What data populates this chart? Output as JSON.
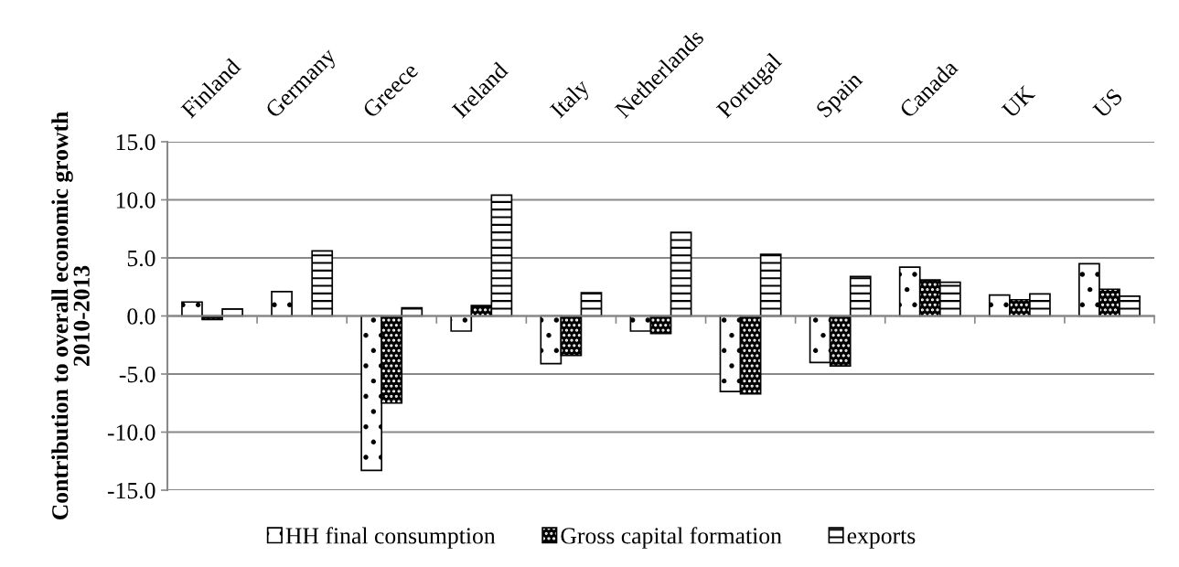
{
  "chart_data": {
    "type": "bar",
    "ylabel": "Contribution to overall economic growth\n2010-2013",
    "categories": [
      "Finland",
      "Germany",
      "Greece",
      "Ireland",
      "Italy",
      "Netherlands",
      "Portugal",
      "Spain",
      "Canada",
      "UK",
      "US"
    ],
    "series": [
      {
        "name": "HH final consumption",
        "color": "#000000",
        "values": [
          1.2,
          2.1,
          -13.3,
          -1.3,
          -4.1,
          -1.3,
          -6.5,
          -4.0,
          4.2,
          1.8,
          4.5
        ]
      },
      {
        "name": "Gross capital formation",
        "color": "#000000",
        "values": [
          -0.3,
          null,
          -7.5,
          0.9,
          -3.4,
          -1.5,
          -6.7,
          -4.3,
          3.1,
          1.4,
          2.3
        ]
      },
      {
        "name": "exports",
        "color": "#000000",
        "values": [
          0.6,
          5.6,
          0.7,
          10.4,
          2.0,
          7.2,
          5.3,
          3.4,
          2.9,
          1.9,
          1.7
        ]
      }
    ],
    "ylim": [
      -15,
      15
    ],
    "yticks": [
      {
        "value": -15,
        "label": "-15.0"
      },
      {
        "value": -10,
        "label": "-10.0"
      },
      {
        "value": -5,
        "label": "-5.0"
      },
      {
        "value": 0,
        "label": "0.0"
      },
      {
        "value": 5,
        "label": "5.0"
      },
      {
        "value": 10,
        "label": "10.0"
      },
      {
        "value": 15,
        "label": "15.0"
      }
    ],
    "grid": "y",
    "legend": "bottom"
  }
}
